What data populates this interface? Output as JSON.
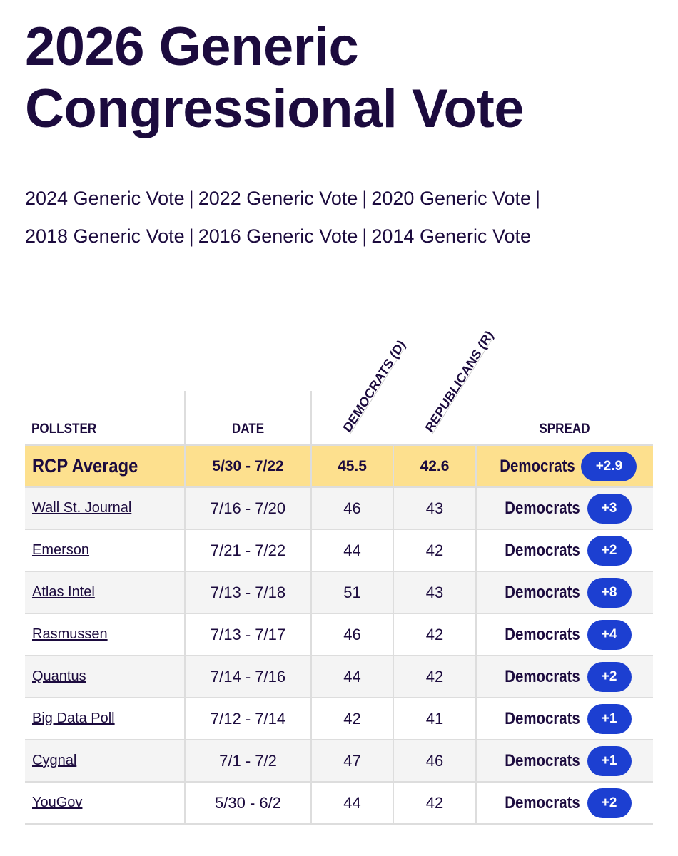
{
  "title_line1": "2026 Generic",
  "title_line2": "Congressional Vote",
  "links": [
    "2024 Generic Vote",
    "2022 Generic Vote",
    "2020 Generic Vote",
    "2018 Generic Vote",
    "2016 Generic Vote",
    "2014 Generic Vote"
  ],
  "separator": "|",
  "table": {
    "headers": {
      "pollster": "POLLSTER",
      "date": "DATE",
      "dem": "DEMOCRATS (D)",
      "rep": "REPUBLICANS (R)",
      "spread": "SPREAD"
    },
    "average": {
      "pollster": "RCP Average",
      "date": "5/30 - 7/22",
      "dem": "45.5",
      "rep": "42.6",
      "party": "Democrats",
      "spread": "+2.9"
    },
    "rows": [
      {
        "pollster": "Wall St. Journal",
        "date": "7/16 - 7/20",
        "dem": "46",
        "rep": "43",
        "party": "Democrats",
        "spread": "+3"
      },
      {
        "pollster": "Emerson",
        "date": "7/21 - 7/22",
        "dem": "44",
        "rep": "42",
        "party": "Democrats",
        "spread": "+2"
      },
      {
        "pollster": "Atlas Intel",
        "date": "7/13 - 7/18",
        "dem": "51",
        "rep": "43",
        "party": "Democrats",
        "spread": "+8"
      },
      {
        "pollster": "Rasmussen",
        "date": "7/13 - 7/17",
        "dem": "46",
        "rep": "42",
        "party": "Democrats",
        "spread": "+4"
      },
      {
        "pollster": "Quantus",
        "date": "7/14 - 7/16",
        "dem": "44",
        "rep": "42",
        "party": "Democrats",
        "spread": "+2"
      },
      {
        "pollster": "Big Data Poll",
        "date": "7/12 - 7/14",
        "dem": "42",
        "rep": "41",
        "party": "Democrats",
        "spread": "+1"
      },
      {
        "pollster": "Cygnal",
        "date": "7/1 - 7/2",
        "dem": "47",
        "rep": "46",
        "party": "Democrats",
        "spread": "+1"
      },
      {
        "pollster": "YouGov",
        "date": "5/30 - 6/2",
        "dem": "44",
        "rep": "42",
        "party": "Democrats",
        "spread": "+2"
      }
    ]
  },
  "colors": {
    "text": "#1c0b3e",
    "average_row": "#fde08e",
    "spread_pill": "#1c3fd1",
    "alt_row": "#f4f4f4"
  }
}
